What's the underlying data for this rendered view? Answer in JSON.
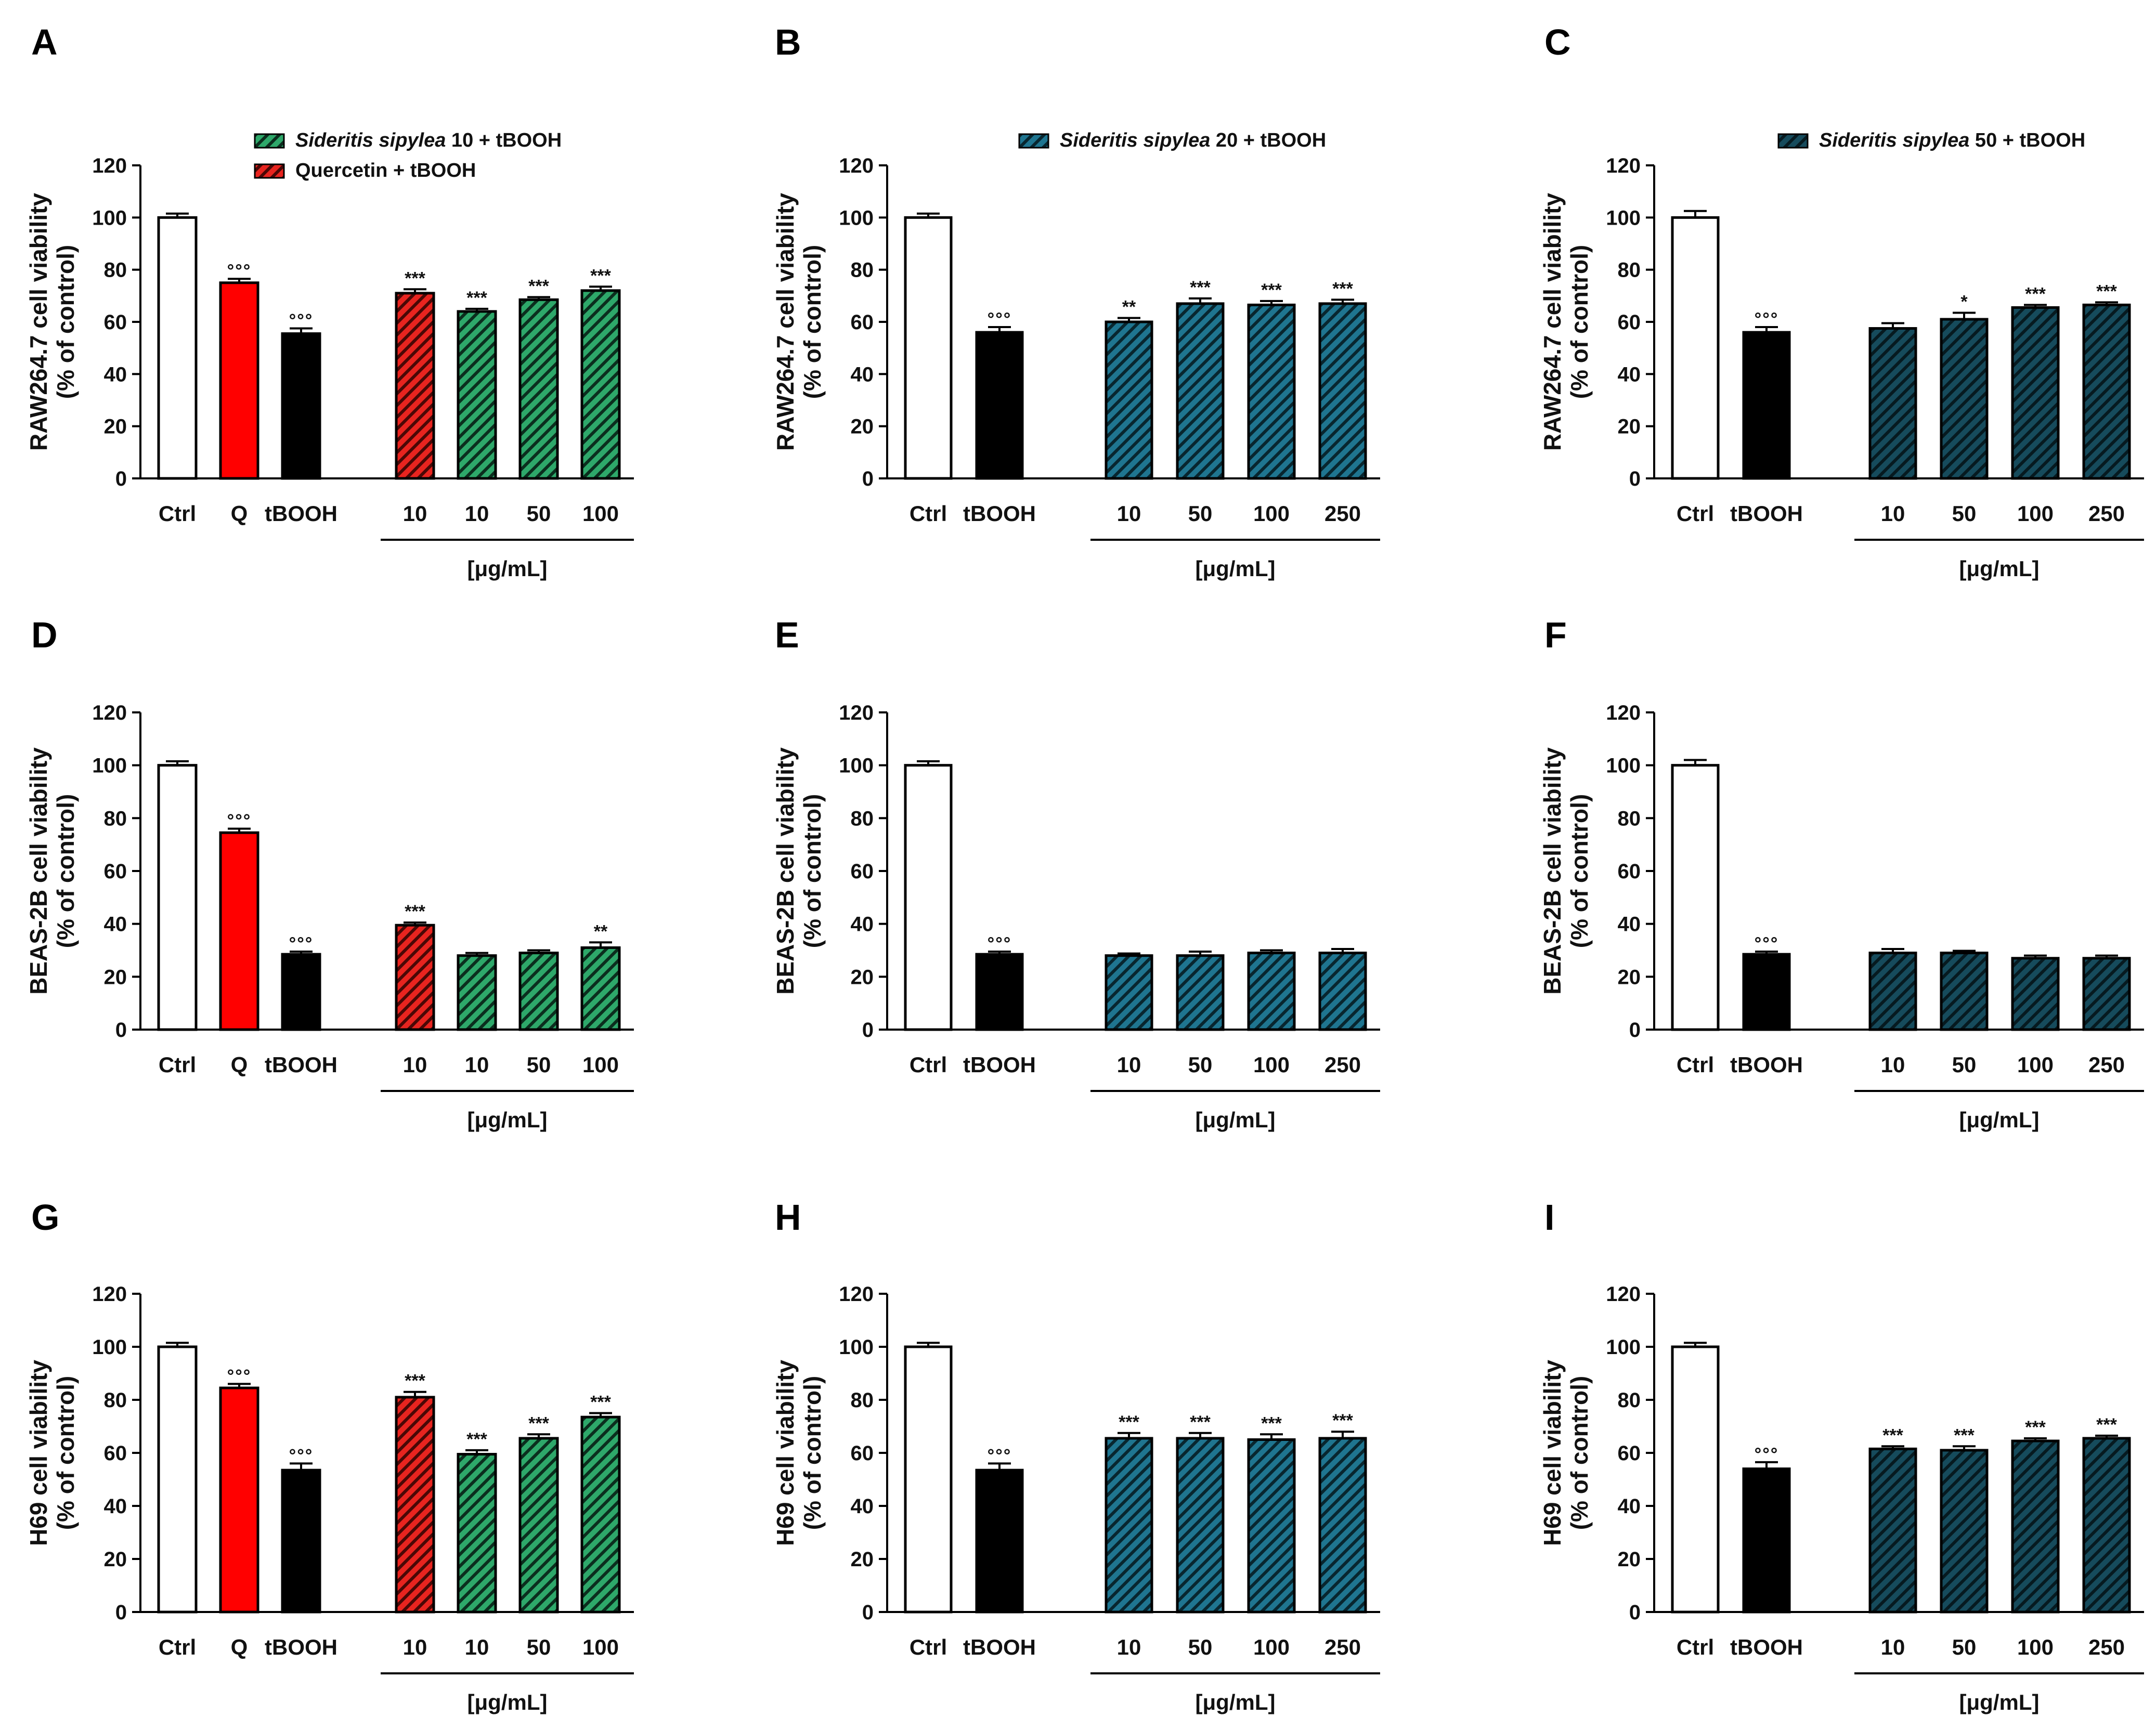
{
  "colors": {
    "ctrl": "#ffffff",
    "quercetin": "#ff0000",
    "tbooh": "#000000",
    "extract10": "#2ea86a",
    "extract20": "#1f7590",
    "extract50": "#123f4e",
    "quercetin_hatched": "#e8241f"
  },
  "chart_data": [
    {
      "panel": "A",
      "type": "bar",
      "ylabel": [
        "RAW264.7 cell viability",
        "(% of control)"
      ],
      "ylim": [
        0,
        120
      ],
      "yticks": [
        0,
        20,
        40,
        60,
        80,
        100,
        120
      ],
      "xunit": "[μg/mL]",
      "legend": [
        {
          "italic": "Sideritis sipylea",
          "rest": " 10 + tBOOH",
          "style": "extract10"
        },
        {
          "italic": "",
          "rest": "Quercetin + tBOOH",
          "style": "quercetin_hatched"
        }
      ],
      "bars": [
        {
          "label": "Ctrl",
          "value": 100,
          "err": 1.5,
          "style": "ctrl",
          "sig": ""
        },
        {
          "label": "Q",
          "value": 75,
          "err": 1.5,
          "style": "quercetin",
          "sig": "°°°"
        },
        {
          "label": "tBOOH",
          "value": 55.5,
          "err": 2,
          "style": "tbooh",
          "sig": "°°°"
        },
        {
          "label": "10",
          "value": 71,
          "err": 1.5,
          "style": "quercetin_hatched",
          "sig": "***"
        },
        {
          "label": "10",
          "value": 64,
          "err": 1,
          "style": "extract10",
          "sig": "***"
        },
        {
          "label": "50",
          "value": 68.5,
          "err": 1,
          "style": "extract10",
          "sig": "***"
        },
        {
          "label": "100",
          "value": 72,
          "err": 1.5,
          "style": "extract10",
          "sig": "***"
        }
      ]
    },
    {
      "panel": "B",
      "type": "bar",
      "ylabel": [
        "RAW264.7 cell viability",
        "(% of control)"
      ],
      "ylim": [
        0,
        120
      ],
      "yticks": [
        0,
        20,
        40,
        60,
        80,
        100,
        120
      ],
      "xunit": "[μg/mL]",
      "legend": [
        {
          "italic": "Sideritis sipylea",
          "rest": " 20 + tBOOH",
          "style": "extract20"
        }
      ],
      "bars": [
        {
          "label": "Ctrl",
          "value": 100,
          "err": 1.5,
          "style": "ctrl",
          "sig": ""
        },
        {
          "label": "tBOOH",
          "value": 56,
          "err": 2,
          "style": "tbooh",
          "sig": "°°°"
        },
        {
          "label": "10",
          "value": 60,
          "err": 1.5,
          "style": "extract20",
          "sig": "**"
        },
        {
          "label": "50",
          "value": 67,
          "err": 2,
          "style": "extract20",
          "sig": "***"
        },
        {
          "label": "100",
          "value": 66.5,
          "err": 1.5,
          "style": "extract20",
          "sig": "***"
        },
        {
          "label": "250",
          "value": 67,
          "err": 1.5,
          "style": "extract20",
          "sig": "***"
        }
      ]
    },
    {
      "panel": "C",
      "type": "bar",
      "ylabel": [
        "RAW264.7 cell viability",
        "(% of control)"
      ],
      "ylim": [
        0,
        120
      ],
      "yticks": [
        0,
        20,
        40,
        60,
        80,
        100,
        120
      ],
      "xunit": "[μg/mL]",
      "legend": [
        {
          "italic": "Sideritis sipylea",
          "rest": " 50 + tBOOH",
          "style": "extract50"
        }
      ],
      "bars": [
        {
          "label": "Ctrl",
          "value": 100,
          "err": 2.5,
          "style": "ctrl",
          "sig": ""
        },
        {
          "label": "tBOOH",
          "value": 56,
          "err": 2,
          "style": "tbooh",
          "sig": "°°°"
        },
        {
          "label": "10",
          "value": 57.5,
          "err": 2,
          "style": "extract50",
          "sig": ""
        },
        {
          "label": "50",
          "value": 61,
          "err": 2.5,
          "style": "extract50",
          "sig": "*"
        },
        {
          "label": "100",
          "value": 65.5,
          "err": 1,
          "style": "extract50",
          "sig": "***"
        },
        {
          "label": "250",
          "value": 66.5,
          "err": 1,
          "style": "extract50",
          "sig": "***"
        }
      ]
    },
    {
      "panel": "D",
      "type": "bar",
      "ylabel": [
        "BEAS-2B cell viability",
        "(% of control)"
      ],
      "ylim": [
        0,
        120
      ],
      "yticks": [
        0,
        20,
        40,
        60,
        80,
        100,
        120
      ],
      "xunit": "[μg/mL]",
      "legend": [],
      "bars": [
        {
          "label": "Ctrl",
          "value": 100,
          "err": 1.5,
          "style": "ctrl",
          "sig": ""
        },
        {
          "label": "Q",
          "value": 74.5,
          "err": 1.5,
          "style": "quercetin",
          "sig": "°°°"
        },
        {
          "label": "tBOOH",
          "value": 28.5,
          "err": 1,
          "style": "tbooh",
          "sig": "°°°"
        },
        {
          "label": "10",
          "value": 39.5,
          "err": 1,
          "style": "quercetin_hatched",
          "sig": "***"
        },
        {
          "label": "10",
          "value": 28,
          "err": 1,
          "style": "extract10",
          "sig": ""
        },
        {
          "label": "50",
          "value": 29,
          "err": 1,
          "style": "extract10",
          "sig": ""
        },
        {
          "label": "100",
          "value": 31,
          "err": 2,
          "style": "extract10",
          "sig": "**"
        }
      ]
    },
    {
      "panel": "E",
      "type": "bar",
      "ylabel": [
        "BEAS-2B cell viability",
        "(% of control)"
      ],
      "ylim": [
        0,
        120
      ],
      "yticks": [
        0,
        20,
        40,
        60,
        80,
        100,
        120
      ],
      "xunit": "[μg/mL]",
      "legend": [],
      "bars": [
        {
          "label": "Ctrl",
          "value": 100,
          "err": 1.5,
          "style": "ctrl",
          "sig": ""
        },
        {
          "label": "tBOOH",
          "value": 28.5,
          "err": 1,
          "style": "tbooh",
          "sig": "°°°"
        },
        {
          "label": "10",
          "value": 28,
          "err": 0.8,
          "style": "extract20",
          "sig": ""
        },
        {
          "label": "50",
          "value": 28,
          "err": 1.5,
          "style": "extract20",
          "sig": ""
        },
        {
          "label": "100",
          "value": 29,
          "err": 1,
          "style": "extract20",
          "sig": ""
        },
        {
          "label": "250",
          "value": 29,
          "err": 1.5,
          "style": "extract20",
          "sig": ""
        }
      ]
    },
    {
      "panel": "F",
      "type": "bar",
      "ylabel": [
        "BEAS-2B cell viability",
        "(% of control)"
      ],
      "ylim": [
        0,
        120
      ],
      "yticks": [
        0,
        20,
        40,
        60,
        80,
        100,
        120
      ],
      "xunit": "[μg/mL]",
      "legend": [],
      "bars": [
        {
          "label": "Ctrl",
          "value": 100,
          "err": 2,
          "style": "ctrl",
          "sig": ""
        },
        {
          "label": "tBOOH",
          "value": 28.5,
          "err": 1,
          "style": "tbooh",
          "sig": "°°°"
        },
        {
          "label": "10",
          "value": 29,
          "err": 1.5,
          "style": "extract50",
          "sig": ""
        },
        {
          "label": "50",
          "value": 29,
          "err": 0.8,
          "style": "extract50",
          "sig": ""
        },
        {
          "label": "100",
          "value": 27,
          "err": 1,
          "style": "extract50",
          "sig": ""
        },
        {
          "label": "250",
          "value": 27,
          "err": 1,
          "style": "extract50",
          "sig": ""
        }
      ]
    },
    {
      "panel": "G",
      "type": "bar",
      "ylabel": [
        "H69 cell viability",
        "(% of control)"
      ],
      "ylim": [
        0,
        120
      ],
      "yticks": [
        0,
        20,
        40,
        60,
        80,
        100,
        120
      ],
      "xunit": "[μg/mL]",
      "legend": [],
      "bars": [
        {
          "label": "Ctrl",
          "value": 100,
          "err": 1.5,
          "style": "ctrl",
          "sig": ""
        },
        {
          "label": "Q",
          "value": 84.5,
          "err": 1.5,
          "style": "quercetin",
          "sig": "°°°"
        },
        {
          "label": "tBOOH",
          "value": 53.5,
          "err": 2.5,
          "style": "tbooh",
          "sig": "°°°"
        },
        {
          "label": "10",
          "value": 81,
          "err": 2,
          "style": "quercetin_hatched",
          "sig": "***"
        },
        {
          "label": "10",
          "value": 59.5,
          "err": 1.5,
          "style": "extract10",
          "sig": "***"
        },
        {
          "label": "50",
          "value": 65.5,
          "err": 1.5,
          "style": "extract10",
          "sig": "***"
        },
        {
          "label": "100",
          "value": 73.5,
          "err": 1.5,
          "style": "extract10",
          "sig": "***"
        }
      ]
    },
    {
      "panel": "H",
      "type": "bar",
      "ylabel": [
        "H69 cell viability",
        "(% of control)"
      ],
      "ylim": [
        0,
        120
      ],
      "yticks": [
        0,
        20,
        40,
        60,
        80,
        100,
        120
      ],
      "xunit": "[μg/mL]",
      "legend": [],
      "bars": [
        {
          "label": "Ctrl",
          "value": 100,
          "err": 1.5,
          "style": "ctrl",
          "sig": ""
        },
        {
          "label": "tBOOH",
          "value": 53.5,
          "err": 2.5,
          "style": "tbooh",
          "sig": "°°°"
        },
        {
          "label": "10",
          "value": 65.5,
          "err": 2,
          "style": "extract20",
          "sig": "***"
        },
        {
          "label": "50",
          "value": 65.5,
          "err": 2,
          "style": "extract20",
          "sig": "***"
        },
        {
          "label": "100",
          "value": 65,
          "err": 2,
          "style": "extract20",
          "sig": "***"
        },
        {
          "label": "250",
          "value": 65.5,
          "err": 2.5,
          "style": "extract20",
          "sig": "***"
        }
      ]
    },
    {
      "panel": "I",
      "type": "bar",
      "ylabel": [
        "H69 cell viability",
        "(% of control)"
      ],
      "ylim": [
        0,
        120
      ],
      "yticks": [
        0,
        20,
        40,
        60,
        80,
        100,
        120
      ],
      "xunit": "[μg/mL]",
      "legend": [],
      "bars": [
        {
          "label": "Ctrl",
          "value": 100,
          "err": 1.5,
          "style": "ctrl",
          "sig": ""
        },
        {
          "label": "tBOOH",
          "value": 54,
          "err": 2.5,
          "style": "tbooh",
          "sig": "°°°"
        },
        {
          "label": "10",
          "value": 61.5,
          "err": 1,
          "style": "extract50",
          "sig": "***"
        },
        {
          "label": "50",
          "value": 61,
          "err": 1.5,
          "style": "extract50",
          "sig": "***"
        },
        {
          "label": "100",
          "value": 64.5,
          "err": 1,
          "style": "extract50",
          "sig": "***"
        },
        {
          "label": "250",
          "value": 65.5,
          "err": 1,
          "style": "extract50",
          "sig": "***"
        }
      ]
    }
  ]
}
